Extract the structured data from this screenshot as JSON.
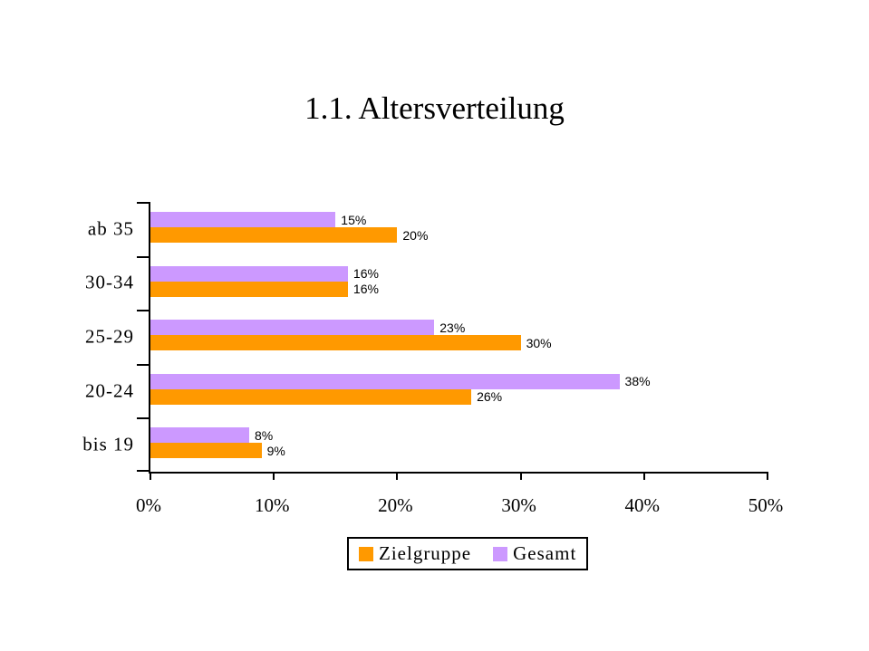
{
  "title": "1.1. Altersverteilung",
  "chart_data": {
    "type": "bar",
    "orientation": "horizontal",
    "title": "1.1. Altersverteilung",
    "categories": [
      "ab 35",
      "30-34",
      "25-29",
      "20-24",
      "bis 19"
    ],
    "series": [
      {
        "name": "Zielgruppe",
        "color": "#FF9900",
        "values": [
          20,
          16,
          30,
          26,
          9
        ]
      },
      {
        "name": "Gesamt",
        "color": "#CC99FF",
        "values": [
          15,
          16,
          23,
          38,
          8
        ]
      }
    ],
    "value_suffix": "%",
    "xlim": [
      0,
      50
    ],
    "x_tick_labels": [
      "0%",
      "10%",
      "20%",
      "30%",
      "40%",
      "50%"
    ],
    "data_labels": true,
    "grid": false,
    "legend_position": "bottom",
    "axis_color": "#000000",
    "background_color": "#FFFFFF"
  }
}
